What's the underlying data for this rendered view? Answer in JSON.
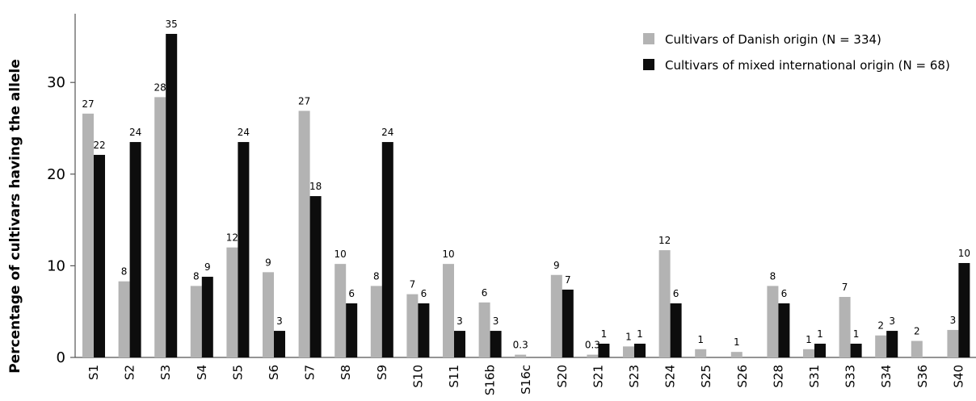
{
  "chart_data": {
    "type": "bar",
    "ylabel": "Percentage of cultivars having the allele",
    "xlabel": "",
    "ylim": [
      0,
      37.5
    ],
    "yticks": [
      0,
      10,
      20,
      30
    ],
    "legend_position": "top-right",
    "categories": [
      "S1",
      "S2",
      "S3",
      "S4",
      "S5",
      "S6",
      "S7",
      "S8",
      "S9",
      "S10",
      "S11",
      "S16b",
      "S16c",
      "S20",
      "S21",
      "S23",
      "S24",
      "S25",
      "S26",
      "S28",
      "S31",
      "S33",
      "S34",
      "S36",
      "S40"
    ],
    "series": [
      {
        "name": "Cultivars of Danish origin (N = 334)",
        "color": "#b3b3b3",
        "values": [
          26.6,
          8.3,
          28.4,
          7.8,
          12.0,
          9.3,
          26.9,
          10.2,
          7.8,
          6.9,
          10.2,
          6.0,
          0.3,
          9.0,
          0.3,
          1.2,
          11.7,
          0.9,
          0.6,
          7.8,
          0.9,
          6.6,
          2.4,
          1.8,
          3.0
        ],
        "labels": [
          "27",
          "8",
          "28",
          "8",
          "12",
          "9",
          "27",
          "10",
          "8",
          "7",
          "10",
          "6",
          "0.3",
          "9",
          "0.3",
          "1",
          "12",
          "1",
          "1",
          "8",
          "1",
          "7",
          "2",
          "2",
          "3"
        ]
      },
      {
        "name": "Cultivars of mixed international origin (N = 68)",
        "color": "#0d0d0d",
        "values": [
          22.1,
          23.5,
          35.3,
          8.8,
          23.5,
          2.9,
          17.6,
          5.9,
          23.5,
          5.9,
          2.9,
          2.9,
          null,
          7.4,
          1.5,
          1.5,
          5.9,
          null,
          null,
          5.9,
          1.5,
          1.5,
          2.9,
          null,
          10.3
        ],
        "labels": [
          "22",
          "24",
          "35",
          "9",
          "24",
          "3",
          "18",
          "6",
          "24",
          "6",
          "3",
          "3",
          "",
          "7",
          "1",
          "1",
          "6",
          "",
          "",
          "6",
          "1",
          "1",
          "3",
          "",
          "10"
        ]
      }
    ]
  }
}
